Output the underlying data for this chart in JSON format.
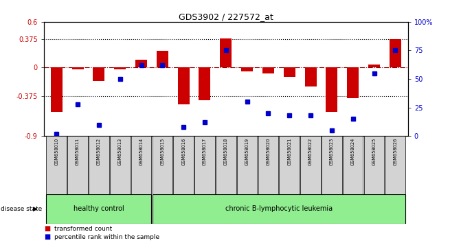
{
  "title": "GDS3902 / 227572_at",
  "samples": [
    "GSM658010",
    "GSM658011",
    "GSM658012",
    "GSM658013",
    "GSM658014",
    "GSM658015",
    "GSM658016",
    "GSM658017",
    "GSM658018",
    "GSM658019",
    "GSM658020",
    "GSM658021",
    "GSM658022",
    "GSM658023",
    "GSM658024",
    "GSM658025",
    "GSM658026"
  ],
  "red_bars": [
    -0.58,
    -0.02,
    -0.18,
    -0.02,
    0.1,
    0.22,
    -0.48,
    -0.43,
    0.38,
    -0.05,
    -0.08,
    -0.12,
    -0.25,
    -0.58,
    -0.4,
    0.04,
    0.37
  ],
  "blue_dots": [
    2,
    28,
    10,
    50,
    62,
    62,
    8,
    12,
    75,
    30,
    20,
    18,
    18,
    5,
    15,
    55,
    75
  ],
  "ylim_left": [
    -0.9,
    0.6
  ],
  "ylim_right": [
    0,
    100
  ],
  "yticks_left": [
    -0.9,
    -0.375,
    0,
    0.375,
    0.6
  ],
  "ytick_labels_left": [
    "-0.9",
    "-0.375",
    "0",
    "0.375",
    "0.6"
  ],
  "yticks_right": [
    0,
    25,
    50,
    75,
    100
  ],
  "ytick_labels_right": [
    "0",
    "25",
    "50",
    "75",
    "100%"
  ],
  "hlines": [
    0.375,
    -0.375
  ],
  "groups": [
    {
      "label": "healthy control",
      "start": 0,
      "end": 4
    },
    {
      "label": "chronic B-lymphocytic leukemia",
      "start": 5,
      "end": 16
    }
  ],
  "disease_state_label": "disease state",
  "legend_red": "transformed count",
  "legend_blue": "percentile rank within the sample",
  "bar_color": "#cc0000",
  "dot_color": "#0000cc",
  "hline_color": "#000000",
  "zero_line_color": "#8b0000",
  "bg_color": "#ffffff",
  "plot_bg": "#ffffff",
  "healthy_color": "#90ee90",
  "leukemia_color": "#90ee90",
  "tick_label_color_left": "#cc0000",
  "tick_label_color_right": "#0000cc",
  "sample_bg": "#d3d3d3"
}
